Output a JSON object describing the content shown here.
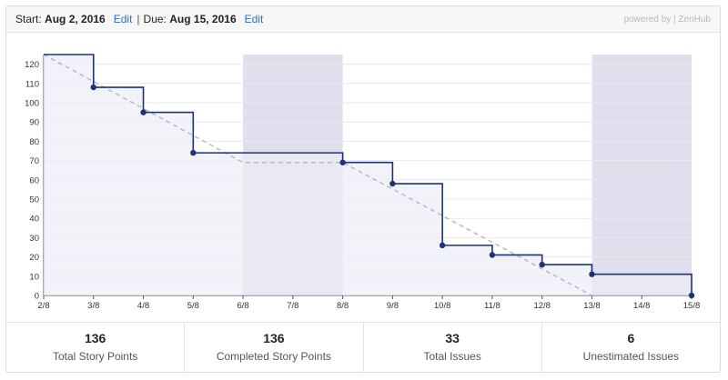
{
  "header": {
    "start_label": "Start:",
    "start_date": "Aug 2, 2016",
    "edit_label": "Edit",
    "separator": "|",
    "due_label": "Due:",
    "due_date": "Aug 15, 2016",
    "powered_by": "powered by | ZenHub"
  },
  "chart_data": {
    "type": "line",
    "categories": [
      "2/8",
      "3/8",
      "4/8",
      "5/8",
      "6/8",
      "7/8",
      "8/8",
      "9/8",
      "10/8",
      "11/8",
      "12/8",
      "13/8",
      "14/8",
      "15/8"
    ],
    "yticks": [
      0,
      10,
      20,
      30,
      40,
      50,
      60,
      70,
      80,
      90,
      100,
      110,
      120
    ],
    "ylim": [
      0,
      125
    ],
    "series": [
      {
        "points": [
          {
            "x": "2/8",
            "y": 125
          },
          {
            "x": "3/8",
            "y": 108
          },
          {
            "x": "4/8",
            "y": 95
          },
          {
            "x": "5/8",
            "y": 74
          },
          {
            "x": "8/8",
            "y": 69
          },
          {
            "x": "9/8",
            "y": 58
          },
          {
            "x": "10/8",
            "y": 26
          },
          {
            "x": "11/8",
            "y": 21
          },
          {
            "x": "12/8",
            "y": 16
          },
          {
            "x": "13/8",
            "y": 11
          },
          {
            "x": "15/8",
            "y": 0
          }
        ]
      },
      {
        "style": "dashed",
        "points": [
          {
            "x": "2/8",
            "y": 125
          },
          {
            "x": "6/8",
            "y": 69
          },
          {
            "x": "8/8",
            "y": 69
          },
          {
            "x": "13/8",
            "y": 0
          }
        ]
      }
    ],
    "shaded_ranges": [
      [
        "6/8",
        "8/8"
      ],
      [
        "13/8",
        "15/8"
      ]
    ],
    "grid": true,
    "colors": {
      "actual": "#1f3275",
      "ideal": "#b9b9c3",
      "fill": "#ececf6",
      "weekend": "#dfdfee"
    }
  },
  "stats": [
    {
      "value": "136",
      "label": "Total Story Points"
    },
    {
      "value": "136",
      "label": "Completed Story Points"
    },
    {
      "value": "33",
      "label": "Total Issues"
    },
    {
      "value": "6",
      "label": "Unestimated Issues"
    }
  ]
}
